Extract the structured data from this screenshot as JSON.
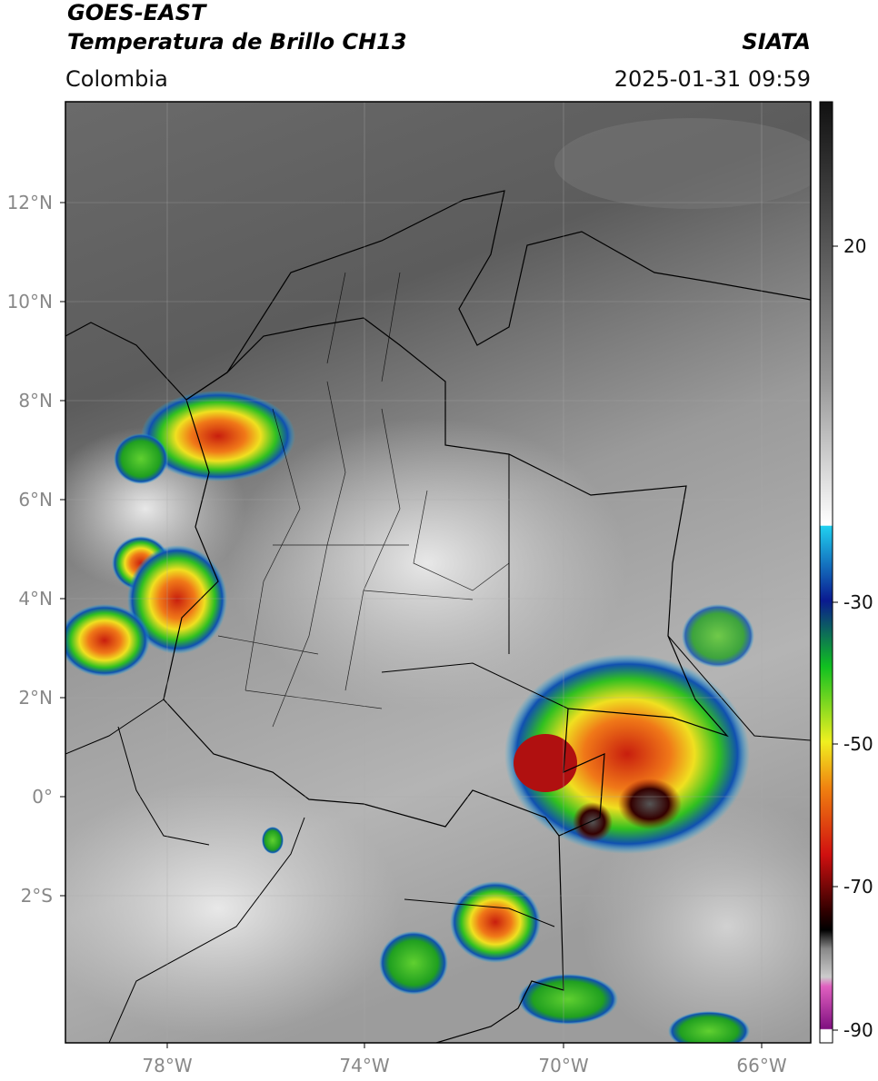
{
  "header": {
    "title": "GOES-EAST",
    "subtitle": "Temperatura de Brillo CH13",
    "region": "Colombia",
    "source": "SIATA",
    "datetime": "2025-01-31 09:59"
  },
  "map": {
    "lon_labels": [
      "78°W",
      "74°W",
      "70°W",
      "66°W"
    ],
    "lat_labels": [
      "12°N",
      "10°N",
      "8°N",
      "6°N",
      "4°N",
      "2°N",
      "0°",
      "2°S"
    ]
  },
  "colorbar": {
    "labels": [
      20,
      -30,
      -50,
      -70,
      -90
    ]
  }
}
